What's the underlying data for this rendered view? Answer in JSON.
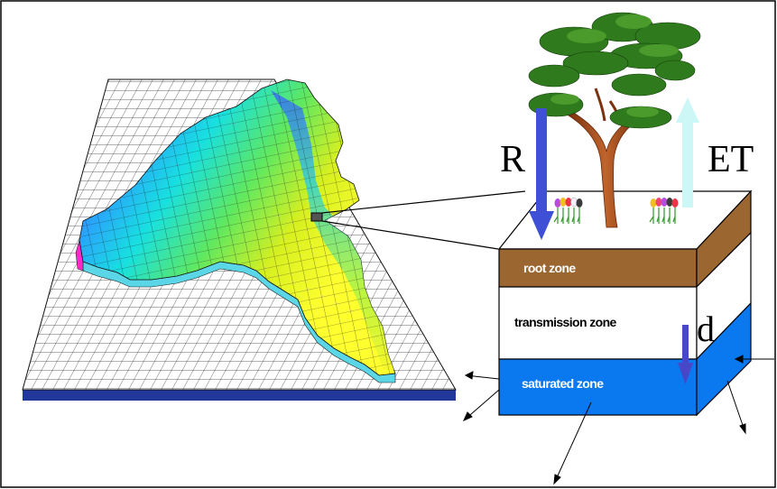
{
  "labels": {
    "recharge": "R",
    "evapotranspiration": "ET",
    "drainage": "d",
    "root_zone": "root zone",
    "transmission_zone": "transmission zone",
    "saturated_zone": "saturated zone"
  },
  "colors": {
    "root_zone": "#9c6630",
    "transmission_zone": "#ffffff",
    "saturated_zone": "#0a79f0",
    "recharge_arrow": "#3f4fd6",
    "et_arrow": "#cdf7f7",
    "drainage_arrow": "#4a46c8",
    "grid_line": "#222222",
    "grid_base": "#1c2f8c"
  }
}
